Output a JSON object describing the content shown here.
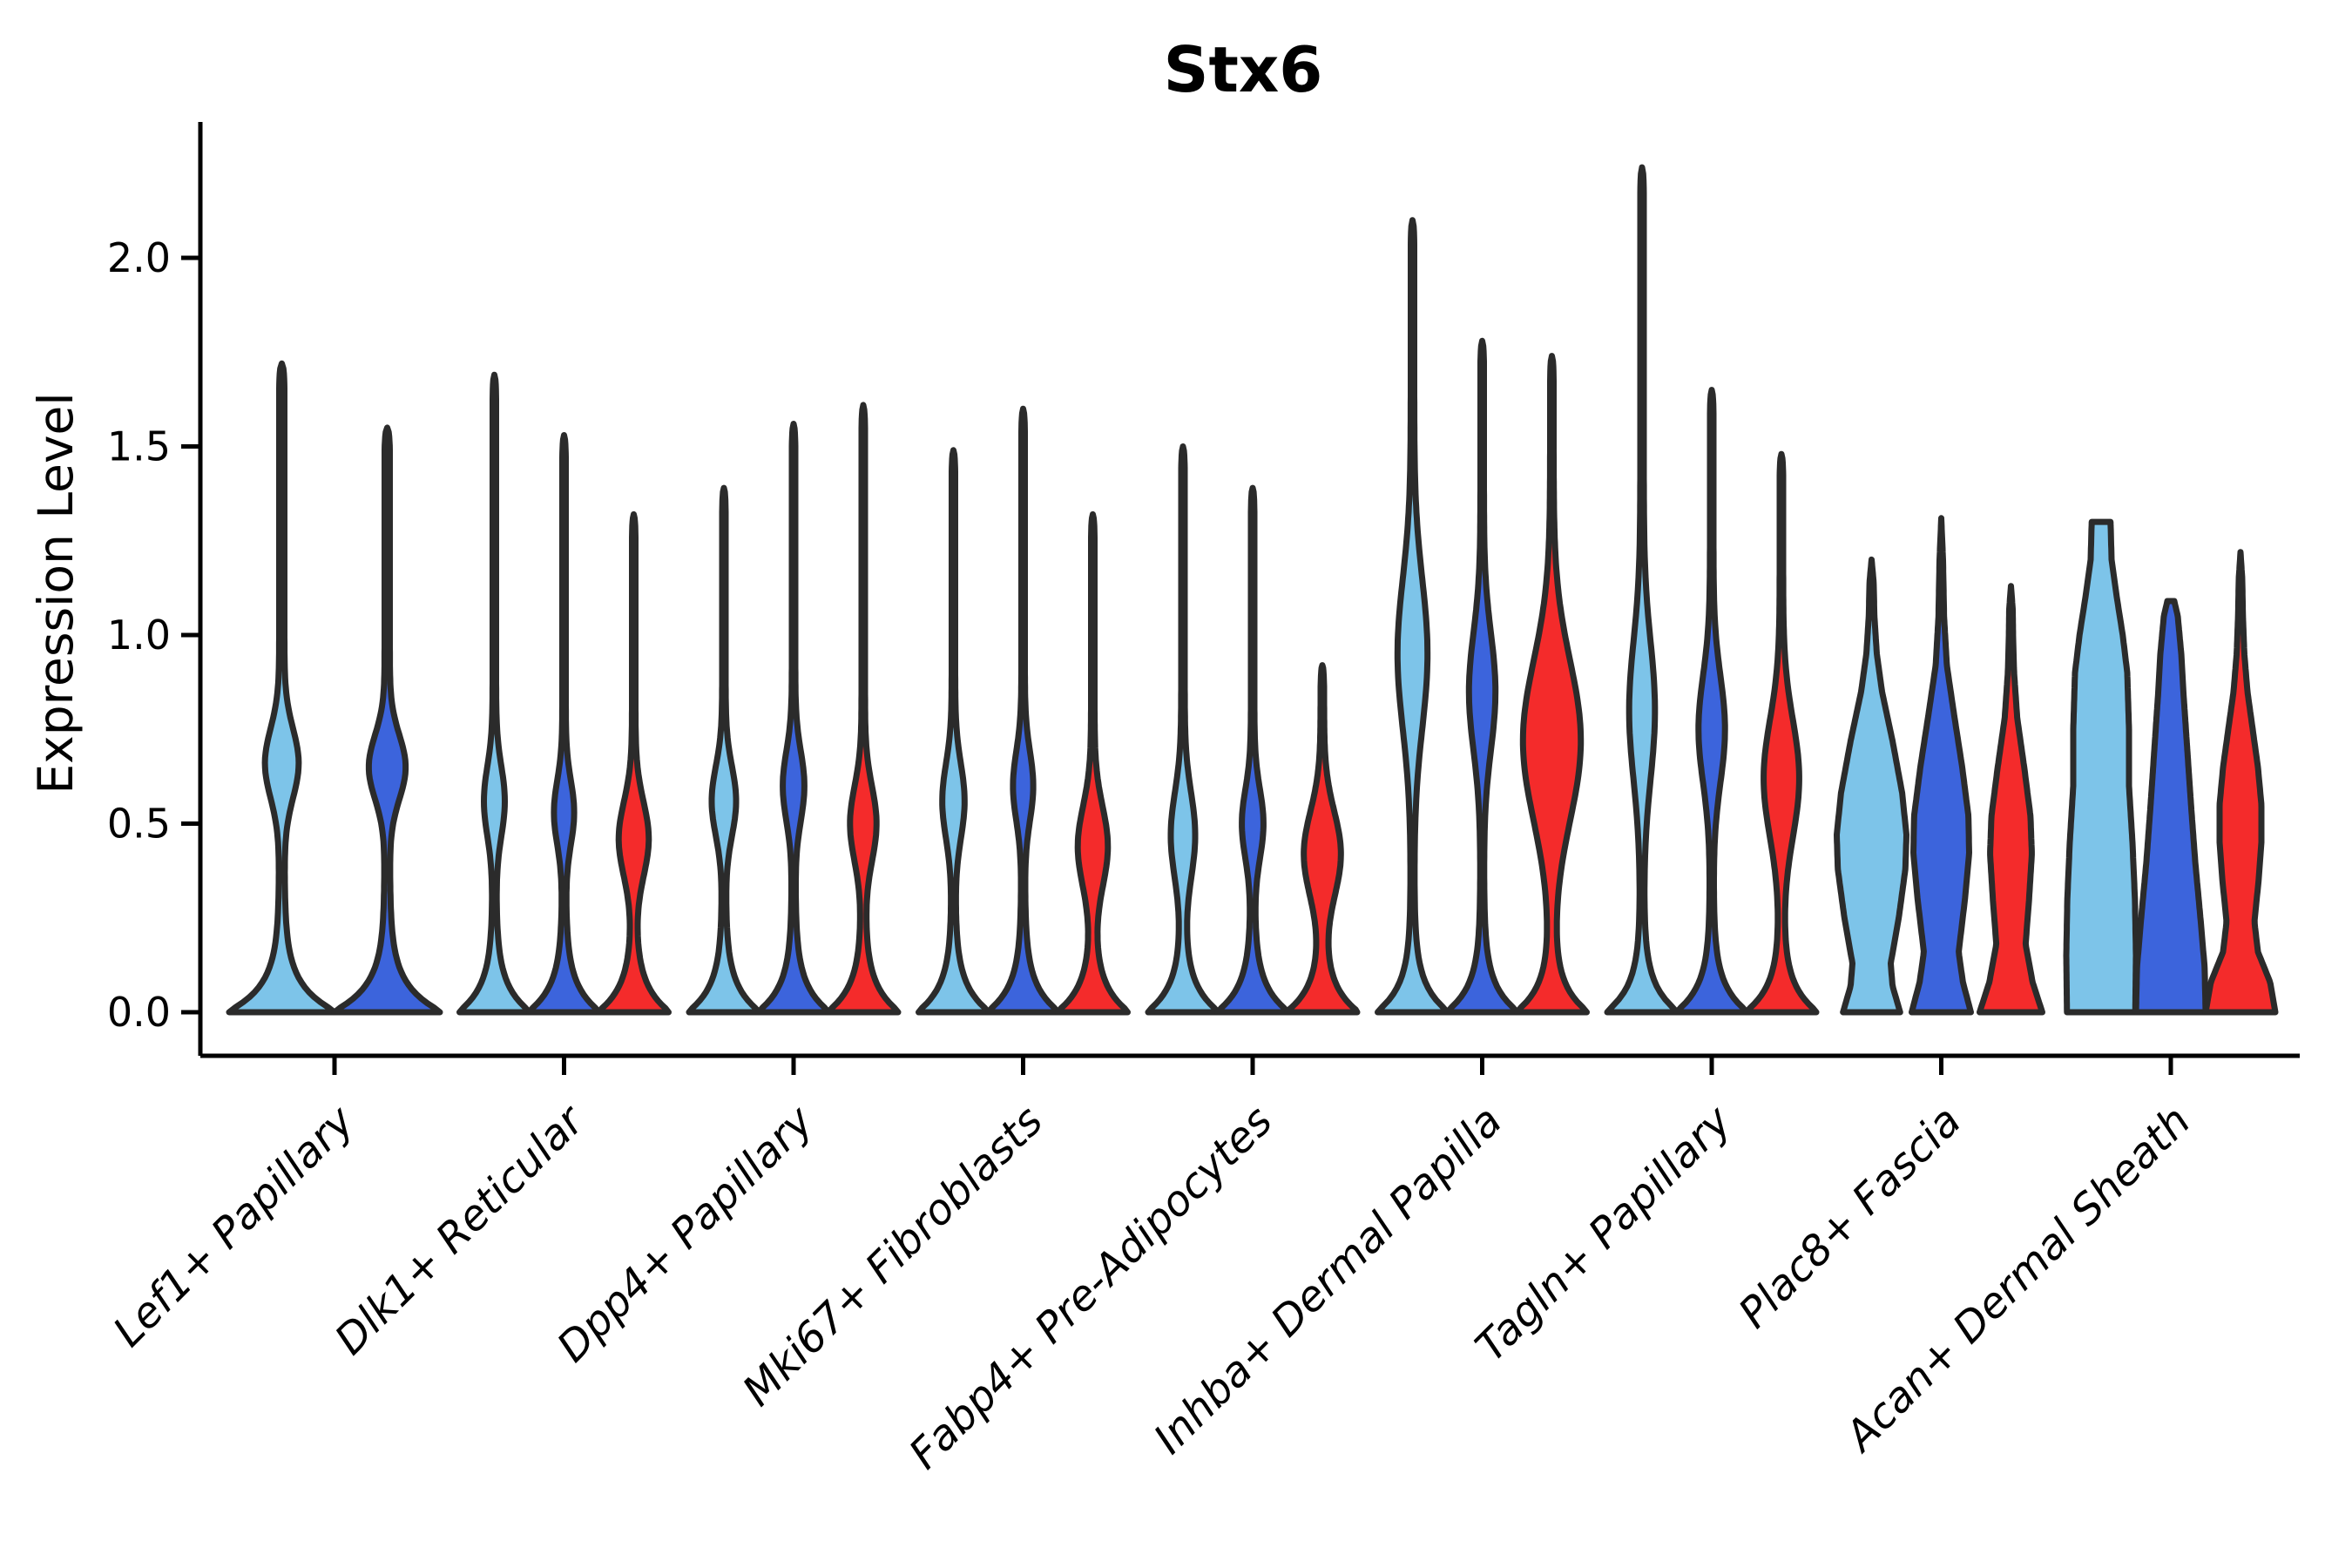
{
  "title": "Stx6",
  "ylabel": "Expression Level",
  "chart_data": {
    "type": "violin",
    "title": "Stx6",
    "xlabel": "",
    "ylabel": "Expression Level",
    "ylim": [
      0,
      2.36
    ],
    "yticks": [
      0.0,
      0.5,
      1.0,
      1.5,
      2.0
    ],
    "ytick_labels": [
      "0.0",
      "0.5",
      "1.0",
      "1.5",
      "2.0"
    ],
    "grid": false,
    "legend": "none",
    "categories": [
      "Lef1+ Papillary",
      "Dlk1+ Reticular",
      "Dpp4+ Papillary",
      "Mki67+ Fibroblasts",
      "Fabp4+ Pre-Adipocytes",
      "Inhba+ Dermal Papilla",
      "Tagln+ Papillary",
      "Plac8+ Fascia",
      "Acan+ Dermal Sheath"
    ],
    "series_colors": {
      "light_blue": "#7DC4E9",
      "dark_blue": "#3C64DC",
      "red": "#F42B2B"
    },
    "outline_color": "#2B2B2B",
    "axis_color": "#000000",
    "groups": [
      {
        "category": "Lef1+ Papillary",
        "cells": [
          {
            "series": "light_blue",
            "max": 1.72,
            "shape": {
              "tip": 1.72,
              "bulge_center": 0.66,
              "bulge_amp": 0.27,
              "bulge_sigma": 0.13
            }
          },
          {
            "series": "dark_blue",
            "max": 1.55,
            "shape": {
              "tip": 1.55,
              "bulge_center": 0.65,
              "bulge_amp": 0.3,
              "bulge_sigma": 0.12
            }
          }
        ]
      },
      {
        "category": "Dlk1+ Reticular",
        "cells": [
          {
            "series": "light_blue",
            "max": 1.69,
            "shape": {
              "tip": 1.69,
              "bulge_center": 0.56,
              "bulge_amp": 0.25,
              "bulge_sigma": 0.13
            }
          },
          {
            "series": "dark_blue",
            "max": 1.53,
            "shape": {
              "tip": 1.53,
              "bulge_center": 0.53,
              "bulge_amp": 0.24,
              "bulge_sigma": 0.12
            }
          },
          {
            "series": "red",
            "max": 1.32,
            "shape": {
              "tip": 1.32,
              "bulge_center": 0.46,
              "bulge_amp": 0.38,
              "bulge_sigma": 0.14
            }
          }
        ]
      },
      {
        "category": "Dpp4+ Papillary",
        "cells": [
          {
            "series": "light_blue",
            "max": 1.39,
            "shape": {
              "tip": 1.39,
              "bulge_center": 0.56,
              "bulge_amp": 0.3,
              "bulge_sigma": 0.13
            }
          },
          {
            "series": "dark_blue",
            "max": 1.56,
            "shape": {
              "tip": 1.56,
              "bulge_center": 0.6,
              "bulge_amp": 0.26,
              "bulge_sigma": 0.13
            }
          },
          {
            "series": "red",
            "max": 1.61,
            "shape": {
              "tip": 1.61,
              "bulge_center": 0.5,
              "bulge_amp": 0.33,
              "bulge_sigma": 0.14
            }
          }
        ]
      },
      {
        "category": "Mki67+ Fibroblasts",
        "cells": [
          {
            "series": "light_blue",
            "max": 1.49,
            "shape": {
              "tip": 1.49,
              "bulge_center": 0.56,
              "bulge_amp": 0.27,
              "bulge_sigma": 0.14
            }
          },
          {
            "series": "dark_blue",
            "max": 1.6,
            "shape": {
              "tip": 1.6,
              "bulge_center": 0.6,
              "bulge_amp": 0.24,
              "bulge_sigma": 0.13
            }
          },
          {
            "series": "red",
            "max": 1.32,
            "shape": {
              "tip": 1.32,
              "bulge_center": 0.44,
              "bulge_amp": 0.38,
              "bulge_sigma": 0.15
            }
          }
        ]
      },
      {
        "category": "Fabp4+ Pre-Adipocytes",
        "cells": [
          {
            "series": "light_blue",
            "max": 1.5,
            "shape": {
              "tip": 1.5,
              "bulge_center": 0.47,
              "bulge_amp": 0.3,
              "bulge_sigma": 0.16
            }
          },
          {
            "series": "dark_blue",
            "max": 1.39,
            "shape": {
              "tip": 1.39,
              "bulge_center": 0.5,
              "bulge_amp": 0.26,
              "bulge_sigma": 0.13
            }
          },
          {
            "series": "red",
            "max": 0.92,
            "shape": {
              "tip": 0.92,
              "bulge_center": 0.42,
              "bulge_amp": 0.48,
              "bulge_sigma": 0.16
            }
          }
        ]
      },
      {
        "category": "Inhba+ Dermal Papilla",
        "cells": [
          {
            "series": "light_blue",
            "max": 2.1,
            "shape": {
              "tip": 2.1,
              "bulge_center": 0.95,
              "bulge_amp": 0.38,
              "bulge_sigma": 0.28
            }
          },
          {
            "series": "dark_blue",
            "max": 1.78,
            "shape": {
              "tip": 1.78,
              "bulge_center": 0.85,
              "bulge_amp": 0.33,
              "bulge_sigma": 0.22
            }
          },
          {
            "series": "red",
            "max": 1.74,
            "shape": {
              "tip": 1.74,
              "bulge_center": 0.72,
              "bulge_amp": 0.78,
              "bulge_sigma": 0.3
            }
          }
        ]
      },
      {
        "category": "Tagln+ Papillary",
        "cells": [
          {
            "series": "light_blue",
            "max": 2.24,
            "shape": {
              "tip": 2.24,
              "bulge_center": 0.8,
              "bulge_amp": 0.32,
              "bulge_sigma": 0.26
            }
          },
          {
            "series": "dark_blue",
            "max": 1.65,
            "shape": {
              "tip": 1.65,
              "bulge_center": 0.75,
              "bulge_amp": 0.33,
              "bulge_sigma": 0.2
            }
          },
          {
            "series": "red",
            "max": 1.48,
            "shape": {
              "tip": 1.48,
              "bulge_center": 0.62,
              "bulge_amp": 0.46,
              "bulge_sigma": 0.22
            }
          }
        ]
      },
      {
        "category": "Plac8+ Fascia",
        "cells": [
          {
            "series": "light_blue",
            "max": 1.2,
            "shape": {
              "profile": [
                [
                  0,
                  0.82
                ],
                [
                  0.07,
                  0.6
                ],
                [
                  0.13,
                  0.55
                ],
                [
                  0.25,
                  0.78
                ],
                [
                  0.38,
                  0.97
                ],
                [
                  0.47,
                  1.0
                ],
                [
                  0.58,
                  0.88
                ],
                [
                  0.72,
                  0.6
                ],
                [
                  0.85,
                  0.3
                ],
                [
                  0.95,
                  0.15
                ],
                [
                  1.05,
                  0.08
                ],
                [
                  1.14,
                  0.06
                ],
                [
                  1.2,
                  0
                ]
              ]
            }
          },
          {
            "series": "dark_blue",
            "max": 1.31,
            "shape": {
              "profile": [
                [
                  0,
                  0.85
                ],
                [
                  0.08,
                  0.62
                ],
                [
                  0.16,
                  0.5
                ],
                [
                  0.3,
                  0.68
                ],
                [
                  0.42,
                  0.8
                ],
                [
                  0.52,
                  0.78
                ],
                [
                  0.65,
                  0.6
                ],
                [
                  0.8,
                  0.35
                ],
                [
                  0.92,
                  0.16
                ],
                [
                  1.05,
                  0.08
                ],
                [
                  1.2,
                  0.05
                ],
                [
                  1.31,
                  0
                ]
              ]
            }
          },
          {
            "series": "red",
            "max": 1.13,
            "shape": {
              "profile": [
                [
                  0,
                  0.9
                ],
                [
                  0.08,
                  0.62
                ],
                [
                  0.18,
                  0.42
                ],
                [
                  0.3,
                  0.52
                ],
                [
                  0.42,
                  0.6
                ],
                [
                  0.52,
                  0.56
                ],
                [
                  0.65,
                  0.38
                ],
                [
                  0.78,
                  0.18
                ],
                [
                  0.9,
                  0.09
                ],
                [
                  1.0,
                  0.06
                ],
                [
                  1.07,
                  0.05
                ],
                [
                  1.13,
                  0
                ]
              ]
            }
          }
        ]
      },
      {
        "category": "Acan+ Dermal Sheath",
        "cells": [
          {
            "series": "light_blue",
            "max": 1.3,
            "shape": {
              "flat": true,
              "profile": [
                [
                  0,
                  0.98
                ],
                [
                  0.15,
                  1.0
                ],
                [
                  0.3,
                  0.97
                ],
                [
                  0.45,
                  0.9
                ],
                [
                  0.6,
                  0.8
                ],
                [
                  0.75,
                  0.8
                ],
                [
                  0.9,
                  0.75
                ],
                [
                  1.0,
                  0.62
                ],
                [
                  1.1,
                  0.45
                ],
                [
                  1.2,
                  0.3
                ],
                [
                  1.27,
                  0.28
                ],
                [
                  1.3,
                  0.27
                ]
              ]
            }
          },
          {
            "series": "dark_blue",
            "max": 1.09,
            "shape": {
              "flat": true,
              "profile": [
                [
                  0,
                  1.0
                ],
                [
                  0.12,
                  0.97
                ],
                [
                  0.25,
                  0.85
                ],
                [
                  0.4,
                  0.7
                ],
                [
                  0.55,
                  0.58
                ],
                [
                  0.7,
                  0.47
                ],
                [
                  0.85,
                  0.36
                ],
                [
                  0.95,
                  0.3
                ],
                [
                  1.05,
                  0.2
                ],
                [
                  1.09,
                  0.1
                ]
              ]
            }
          },
          {
            "series": "red",
            "max": 1.22,
            "shape": {
              "profile": [
                [
                  0,
                  1.0
                ],
                [
                  0.08,
                  0.85
                ],
                [
                  0.16,
                  0.5
                ],
                [
                  0.24,
                  0.4
                ],
                [
                  0.35,
                  0.52
                ],
                [
                  0.45,
                  0.6
                ],
                [
                  0.55,
                  0.6
                ],
                [
                  0.65,
                  0.5
                ],
                [
                  0.75,
                  0.35
                ],
                [
                  0.85,
                  0.2
                ],
                [
                  0.95,
                  0.11
                ],
                [
                  1.05,
                  0.07
                ],
                [
                  1.15,
                  0.05
                ],
                [
                  1.22,
                  0
                ]
              ]
            }
          }
        ]
      }
    ]
  }
}
